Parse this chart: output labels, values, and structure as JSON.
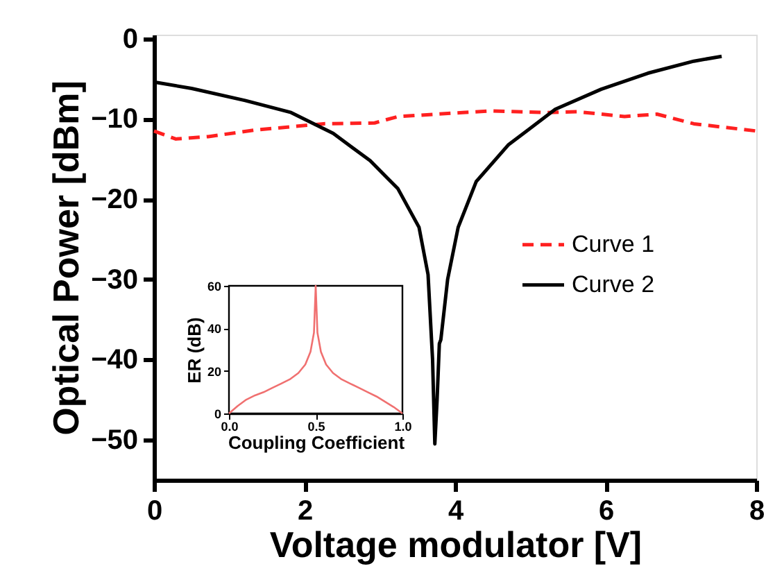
{
  "chart_data": [
    {
      "type": "line",
      "xlabel": "Voltage modulator [V]",
      "ylabel": "Optical Power [dBm]",
      "xlim": [
        0,
        8
      ],
      "ylim": [
        -55,
        0.5
      ],
      "xticks": [
        0,
        2,
        4,
        6,
        8
      ],
      "yticks": [
        0,
        -10,
        -20,
        -30,
        -40,
        -50
      ],
      "grid": false,
      "legend": "right",
      "marker": "none",
      "series": [
        {
          "name": "Curve 1",
          "color": "#ff2020",
          "line_style": "dashed",
          "x": [
            0.0,
            0.29,
            0.72,
            1.33,
            2.25,
            2.93,
            3.24,
            4.1,
            4.47,
            5.2,
            5.63,
            6.25,
            6.68,
            7.17,
            8.0
          ],
          "values": [
            -11.5,
            -12.5,
            -12.2,
            -11.4,
            -10.6,
            -10.5,
            -9.7,
            -9.2,
            -9.0,
            -9.2,
            -9.1,
            -9.7,
            -9.4,
            -10.6,
            -11.5
          ]
        },
        {
          "name": "Curve 2",
          "color": "#000000",
          "line_style": "solid",
          "x": [
            0.0,
            0.5,
            1.21,
            1.82,
            2.38,
            2.87,
            3.24,
            3.52,
            3.64,
            3.7,
            3.73,
            3.76,
            3.79,
            3.81,
            3.9,
            4.04,
            4.28,
            4.71,
            5.33,
            5.94,
            6.56,
            7.17,
            7.54
          ],
          "values": [
            -5.4,
            -6.2,
            -7.7,
            -9.2,
            -11.8,
            -15.2,
            -18.7,
            -23.5,
            -29.4,
            -40.0,
            -50.5,
            -45.0,
            -38.0,
            -37.5,
            -30.0,
            -23.5,
            -17.8,
            -13.2,
            -8.8,
            -6.3,
            -4.3,
            -2.8,
            -2.2
          ]
        }
      ]
    },
    {
      "type": "line",
      "xlabel": "Coupling Coefficient",
      "ylabel": "ER (dB)",
      "xlim": [
        0,
        1
      ],
      "ylim": [
        0,
        60
      ],
      "xticks": [
        {
          "value": 0,
          "label": "0.0"
        },
        {
          "value": 0.5,
          "label": "0.5"
        },
        {
          "value": 1,
          "label": "1.0"
        }
      ],
      "yticks": [
        0,
        20,
        40,
        60
      ],
      "grid": false,
      "marker": "none",
      "series": [
        {
          "color": "#f07070",
          "line_style": "solid",
          "x": [
            0,
            0.05,
            0.1,
            0.15,
            0.2,
            0.25,
            0.3,
            0.35,
            0.4,
            0.44,
            0.47,
            0.49,
            0.5,
            0.51,
            0.53,
            0.56,
            0.6,
            0.65,
            0.7,
            0.75,
            0.8,
            0.85,
            0.9,
            0.95,
            1.0
          ],
          "values": [
            0,
            3.5,
            6.5,
            8.5,
            10,
            12,
            14,
            16,
            19,
            23,
            29,
            38,
            60,
            38,
            29,
            23,
            19,
            16,
            14,
            12,
            10,
            8,
            5.5,
            3,
            0
          ]
        }
      ]
    }
  ]
}
